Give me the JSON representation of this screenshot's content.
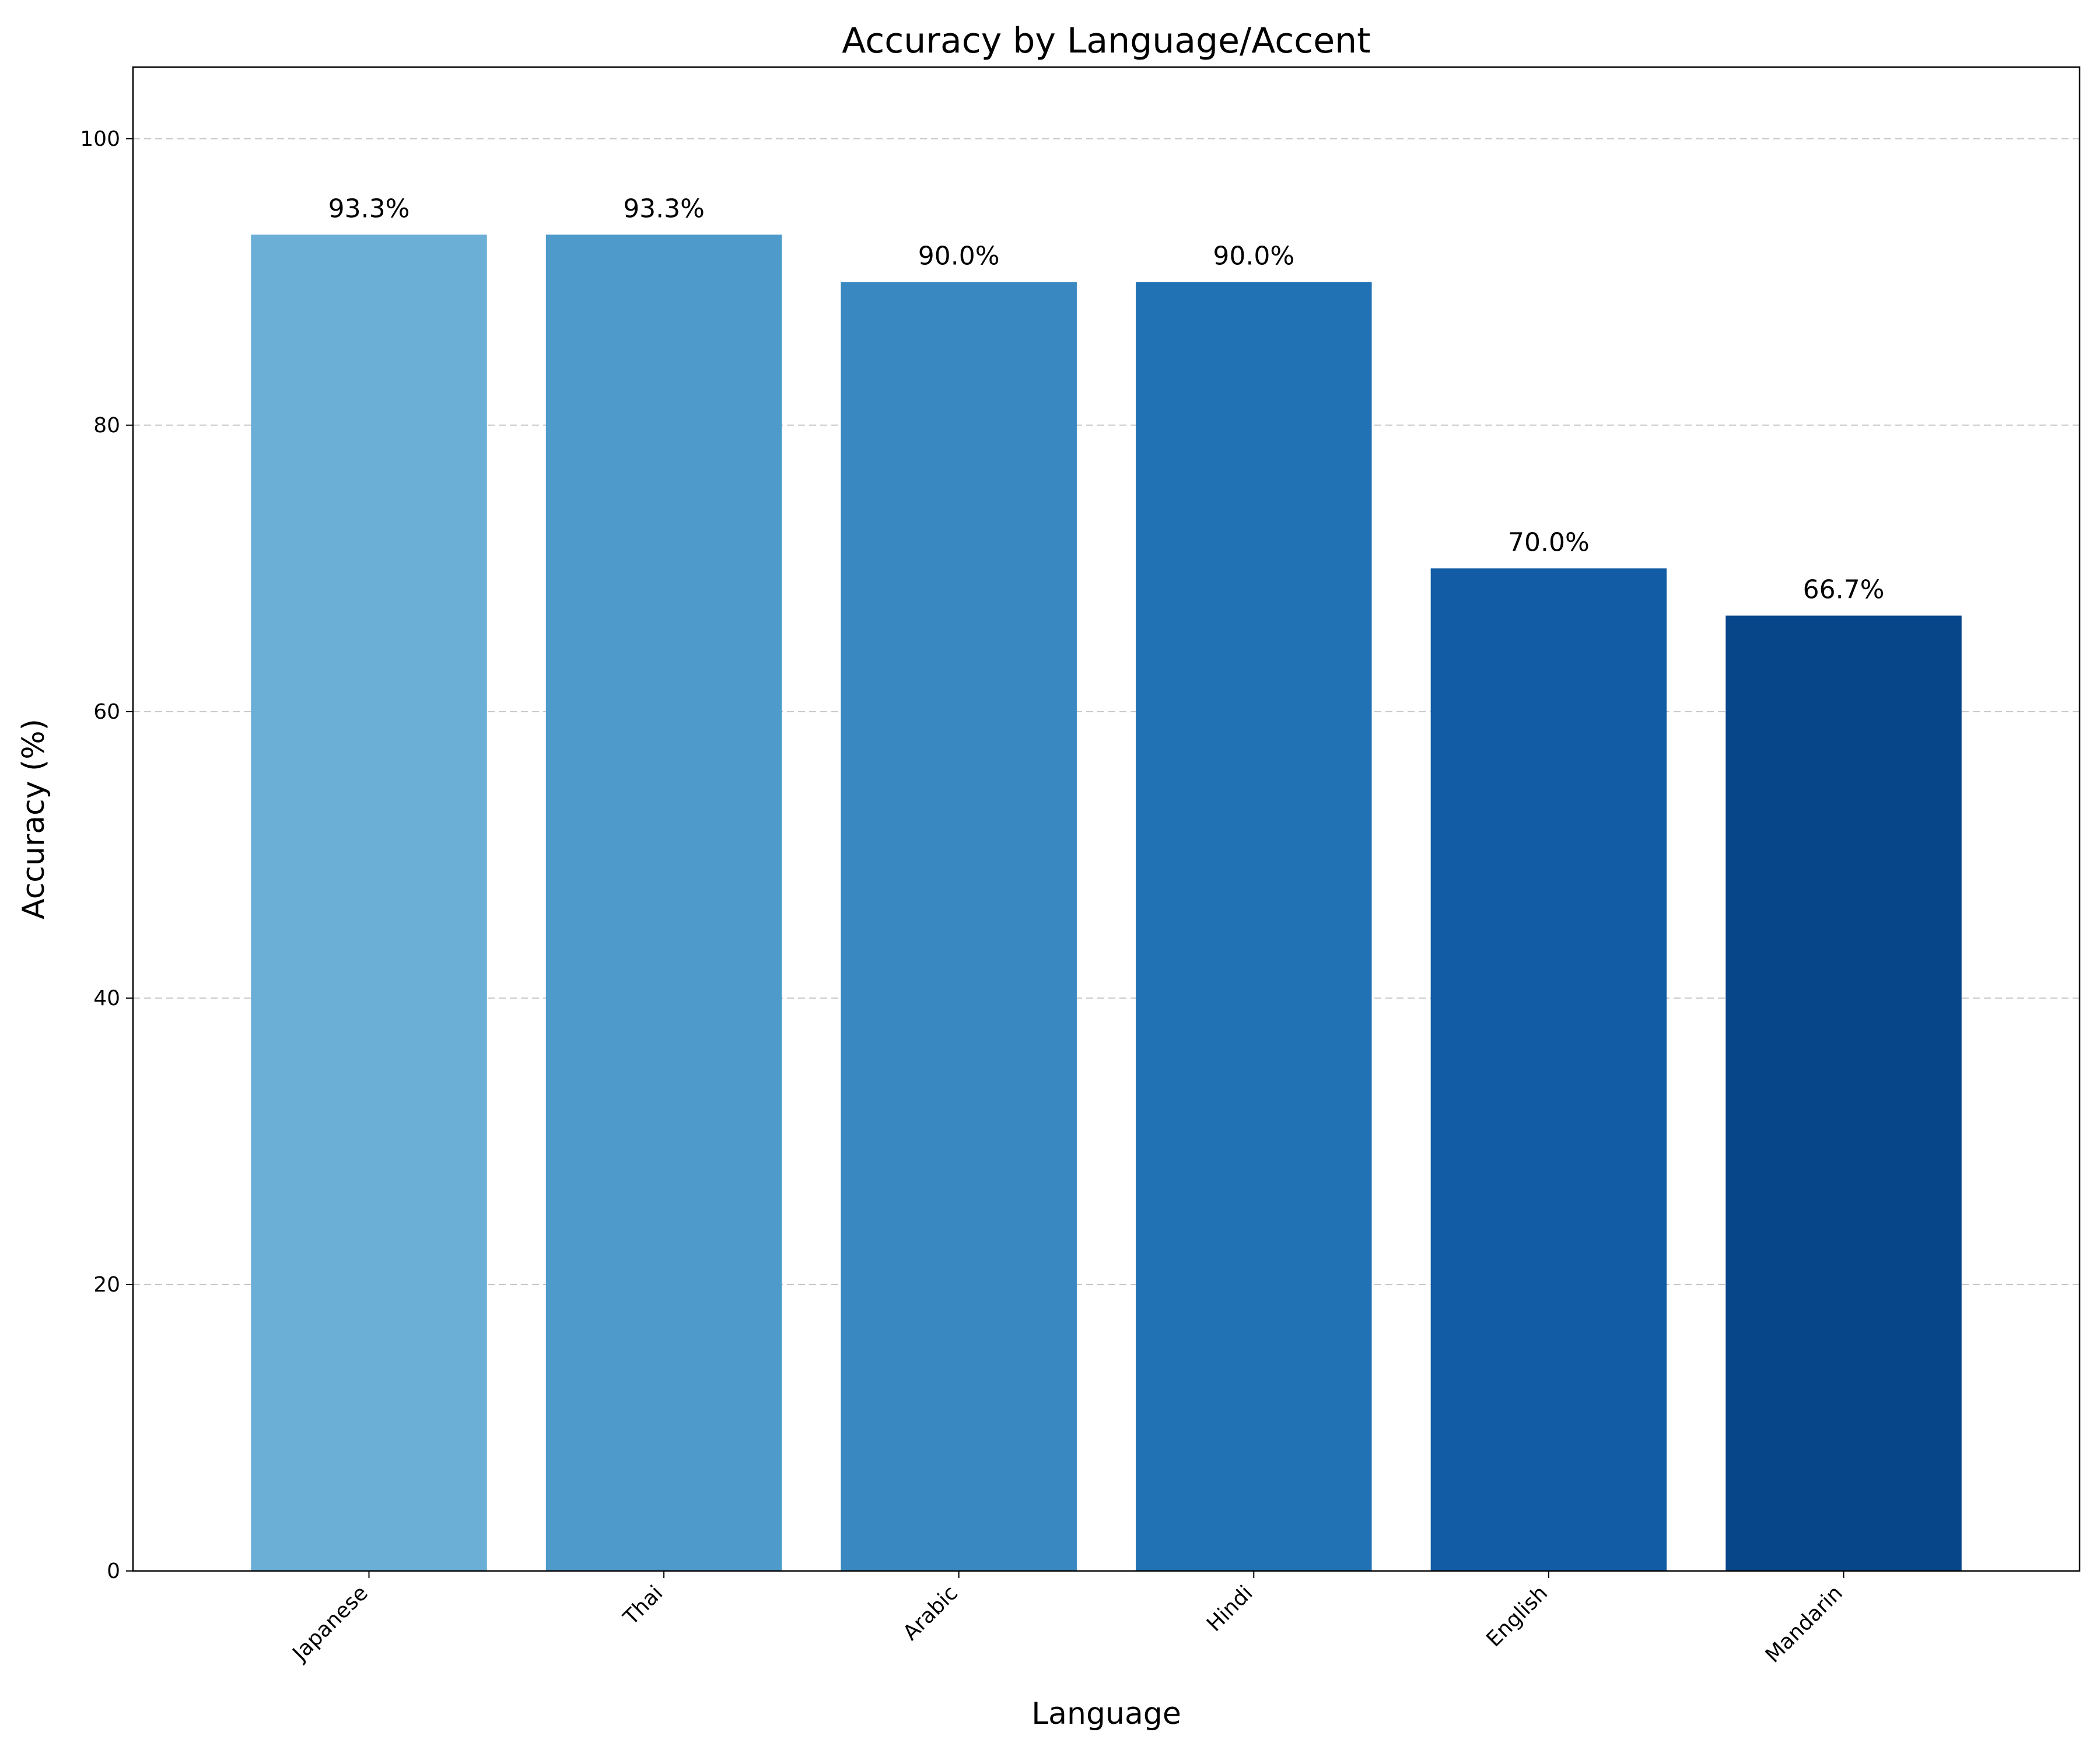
{
  "chart_data": {
    "type": "bar",
    "title": "Accuracy by Language/Accent",
    "xlabel": "Language",
    "ylabel": "Accuracy (%)",
    "categories": [
      "Japanese",
      "Thai",
      "Arabic",
      "Hindi",
      "English",
      "Mandarin"
    ],
    "values": [
      93.3,
      93.3,
      90.0,
      90.0,
      70.0,
      66.7
    ],
    "data_labels": [
      "93.3%",
      "93.3%",
      "90.0%",
      "90.0%",
      "70.0%",
      "66.7%"
    ],
    "colors": [
      "#6baed6",
      "#4e9acb",
      "#3988c1",
      "#2171b5",
      "#115ca5",
      "#08468a"
    ],
    "ylim": [
      0,
      105
    ],
    "yticks": [
      0,
      20,
      40,
      60,
      80,
      100
    ],
    "grid": "y-dashed",
    "legend": "none"
  }
}
